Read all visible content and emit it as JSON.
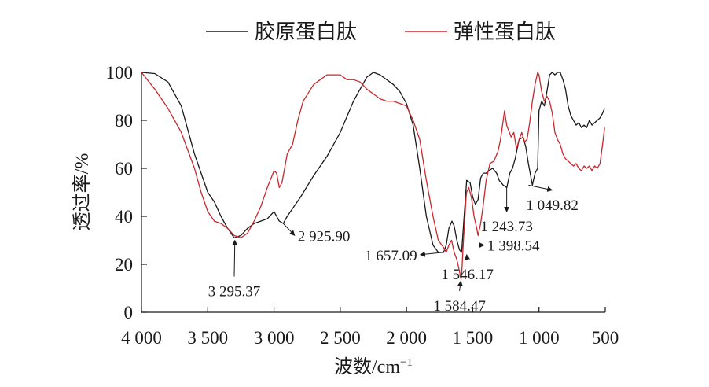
{
  "chart_data": {
    "type": "line",
    "title": "",
    "xlabel": "波数/cm",
    "xlabel_sup": "−1",
    "ylabel": "透过率/%",
    "xlim": [
      4000,
      500
    ],
    "x_reversed": true,
    "ylim": [
      0,
      100
    ],
    "x_ticks": [
      4000,
      3500,
      3000,
      2500,
      2000,
      1500,
      1000,
      500
    ],
    "x_tick_labels": [
      "4 000",
      "3 500",
      "3 000",
      "2 500",
      "2 000",
      "1 500",
      "1 000",
      "500"
    ],
    "y_ticks": [
      0,
      20,
      40,
      60,
      80,
      100
    ],
    "y_tick_labels": [
      "0",
      "20",
      "40",
      "60",
      "80",
      "100"
    ],
    "grid": false,
    "legend_position": "top",
    "series": [
      {
        "name": "胶原蛋白肽",
        "color": "#1a1a1a",
        "points": [
          [
            4000,
            100
          ],
          [
            3900,
            99.5
          ],
          [
            3800,
            96
          ],
          [
            3700,
            86
          ],
          [
            3600,
            66
          ],
          [
            3500,
            50
          ],
          [
            3450,
            46
          ],
          [
            3400,
            40
          ],
          [
            3350,
            35
          ],
          [
            3300,
            31
          ],
          [
            3250,
            32
          ],
          [
            3200,
            35
          ],
          [
            3150,
            37
          ],
          [
            3100,
            38
          ],
          [
            3050,
            39
          ],
          [
            3000,
            42
          ],
          [
            2960,
            38
          ],
          [
            2930,
            37
          ],
          [
            2900,
            40
          ],
          [
            2800,
            48
          ],
          [
            2700,
            57
          ],
          [
            2600,
            65
          ],
          [
            2500,
            75
          ],
          [
            2400,
            88
          ],
          [
            2300,
            98
          ],
          [
            2250,
            100
          ],
          [
            2200,
            99
          ],
          [
            2100,
            95
          ],
          [
            2050,
            92
          ],
          [
            2000,
            87
          ],
          [
            1950,
            78
          ],
          [
            1900,
            60
          ],
          [
            1850,
            40
          ],
          [
            1800,
            28
          ],
          [
            1760,
            25
          ],
          [
            1720,
            25
          ],
          [
            1700,
            28
          ],
          [
            1680,
            35
          ],
          [
            1657,
            38
          ],
          [
            1640,
            36
          ],
          [
            1620,
            30
          ],
          [
            1600,
            26
          ],
          [
            1584,
            25
          ],
          [
            1570,
            36
          ],
          [
            1546,
            55
          ],
          [
            1520,
            54
          ],
          [
            1500,
            48
          ],
          [
            1480,
            45
          ],
          [
            1460,
            47
          ],
          [
            1440,
            56
          ],
          [
            1420,
            58
          ],
          [
            1398,
            58
          ],
          [
            1380,
            59
          ],
          [
            1350,
            60
          ],
          [
            1320,
            58
          ],
          [
            1300,
            55
          ],
          [
            1270,
            53
          ],
          [
            1243,
            52
          ],
          [
            1220,
            58
          ],
          [
            1200,
            60
          ],
          [
            1180,
            64
          ],
          [
            1150,
            72
          ],
          [
            1120,
            73
          ],
          [
            1100,
            69
          ],
          [
            1080,
            62
          ],
          [
            1049.82,
            53
          ],
          [
            1030,
            58
          ],
          [
            1010,
            60
          ],
          [
            1000,
            84
          ],
          [
            980,
            88
          ],
          [
            960,
            86
          ],
          [
            940,
            92
          ],
          [
            920,
            99
          ],
          [
            900,
            100
          ],
          [
            880,
            99
          ],
          [
            860,
            100
          ],
          [
            840,
            100
          ],
          [
            820,
            97
          ],
          [
            800,
            93
          ],
          [
            780,
            86
          ],
          [
            760,
            82
          ],
          [
            740,
            80
          ],
          [
            720,
            78
          ],
          [
            700,
            79
          ],
          [
            680,
            77
          ],
          [
            660,
            78
          ],
          [
            640,
            77
          ],
          [
            620,
            80
          ],
          [
            600,
            78
          ],
          [
            580,
            79
          ],
          [
            560,
            80
          ],
          [
            540,
            81
          ],
          [
            520,
            83
          ],
          [
            505,
            85
          ]
        ]
      },
      {
        "name": "弹性蛋白肽",
        "color": "#c8282e",
        "points": [
          [
            4000,
            100
          ],
          [
            3900,
            93
          ],
          [
            3800,
            85
          ],
          [
            3700,
            75
          ],
          [
            3600,
            60
          ],
          [
            3550,
            50
          ],
          [
            3500,
            42
          ],
          [
            3450,
            38
          ],
          [
            3400,
            37
          ],
          [
            3350,
            35
          ],
          [
            3300,
            32
          ],
          [
            3250,
            31
          ],
          [
            3200,
            33
          ],
          [
            3150,
            38
          ],
          [
            3100,
            44
          ],
          [
            3050,
            52
          ],
          [
            3000,
            59
          ],
          [
            2980,
            58
          ],
          [
            2960,
            52
          ],
          [
            2940,
            54
          ],
          [
            2920,
            60
          ],
          [
            2900,
            66
          ],
          [
            2880,
            68
          ],
          [
            2860,
            70
          ],
          [
            2820,
            80
          ],
          [
            2780,
            88
          ],
          [
            2700,
            95
          ],
          [
            2600,
            99
          ],
          [
            2500,
            99
          ],
          [
            2450,
            97
          ],
          [
            2400,
            97
          ],
          [
            2350,
            96
          ],
          [
            2300,
            93
          ],
          [
            2250,
            91
          ],
          [
            2200,
            89
          ],
          [
            2150,
            88
          ],
          [
            2100,
            88
          ],
          [
            2050,
            87
          ],
          [
            2000,
            86
          ],
          [
            1950,
            80
          ],
          [
            1900,
            72
          ],
          [
            1850,
            55
          ],
          [
            1800,
            40
          ],
          [
            1760,
            30
          ],
          [
            1720,
            27
          ],
          [
            1700,
            25
          ],
          [
            1680,
            28
          ],
          [
            1660,
            30
          ],
          [
            1640,
            25
          ],
          [
            1620,
            22
          ],
          [
            1600,
            17
          ],
          [
            1590,
            14
          ],
          [
            1584.47,
            15
          ],
          [
            1570,
            30
          ],
          [
            1550,
            48
          ],
          [
            1546.17,
            50
          ],
          [
            1530,
            52
          ],
          [
            1510,
            48
          ],
          [
            1490,
            40
          ],
          [
            1470,
            35
          ],
          [
            1460,
            32
          ],
          [
            1440,
            37
          ],
          [
            1420,
            45
          ],
          [
            1398.54,
            55
          ],
          [
            1370,
            62
          ],
          [
            1340,
            63
          ],
          [
            1310,
            67
          ],
          [
            1290,
            72
          ],
          [
            1270,
            80
          ],
          [
            1260,
            84
          ],
          [
            1243.73,
            78
          ],
          [
            1230,
            76
          ],
          [
            1210,
            73
          ],
          [
            1190,
            75
          ],
          [
            1170,
            68
          ],
          [
            1150,
            72
          ],
          [
            1130,
            75
          ],
          [
            1110,
            71
          ],
          [
            1090,
            72
          ],
          [
            1070,
            79
          ],
          [
            1049.82,
            88
          ],
          [
            1030,
            95
          ],
          [
            1010,
            100
          ],
          [
            1000,
            99
          ],
          [
            980,
            92
          ],
          [
            960,
            88
          ],
          [
            940,
            90
          ],
          [
            920,
            88
          ],
          [
            900,
            83
          ],
          [
            880,
            75
          ],
          [
            860,
            72
          ],
          [
            840,
            70
          ],
          [
            820,
            66
          ],
          [
            800,
            64
          ],
          [
            780,
            63
          ],
          [
            760,
            62
          ],
          [
            740,
            61
          ],
          [
            720,
            62
          ],
          [
            700,
            60
          ],
          [
            680,
            59
          ],
          [
            660,
            61
          ],
          [
            640,
            60
          ],
          [
            620,
            61
          ],
          [
            600,
            59
          ],
          [
            580,
            61
          ],
          [
            560,
            60
          ],
          [
            540,
            62
          ],
          [
            520,
            70
          ],
          [
            505,
            77
          ]
        ]
      }
    ],
    "annotations": [
      {
        "label": "3 295.37",
        "at": [
          3295.37,
          31
        ],
        "text_at": [
          3300,
          9
        ],
        "anchor": "middle",
        "arrow": "to-point"
      },
      {
        "label": "2 925.90",
        "at": [
          2930,
          37
        ],
        "text_at": [
          2820,
          32
        ],
        "anchor": "start",
        "arrow": "to-text"
      },
      {
        "label": "1 657.09",
        "at": [
          1715,
          25
        ],
        "text_at": [
          1920,
          24
        ],
        "anchor": "end",
        "arrow": "to-text"
      },
      {
        "label": "1 584.47",
        "at": [
          1590,
          14
        ],
        "text_at": [
          1600,
          3
        ],
        "anchor": "middle",
        "arrow": "to-point"
      },
      {
        "label": "1 546.17",
        "at": [
          1546.17,
          25
        ],
        "text_at": [
          1540,
          16
        ],
        "anchor": "middle",
        "arrow": "to-point"
      },
      {
        "label": "1 398.54",
        "at": [
          1460,
          28
        ],
        "text_at": [
          1390,
          28
        ],
        "anchor": "start",
        "arrow": "to-text"
      },
      {
        "label": "1 243.73",
        "at": [
          1243.73,
          52
        ],
        "text_at": [
          1243.73,
          36
        ],
        "anchor": "middle",
        "arrow": "to-text"
      },
      {
        "label": "1 049.82",
        "at": [
          1079,
          53
        ],
        "text_at": [
          900,
          45
        ],
        "anchor": "middle",
        "arrow": "to-text"
      }
    ]
  }
}
